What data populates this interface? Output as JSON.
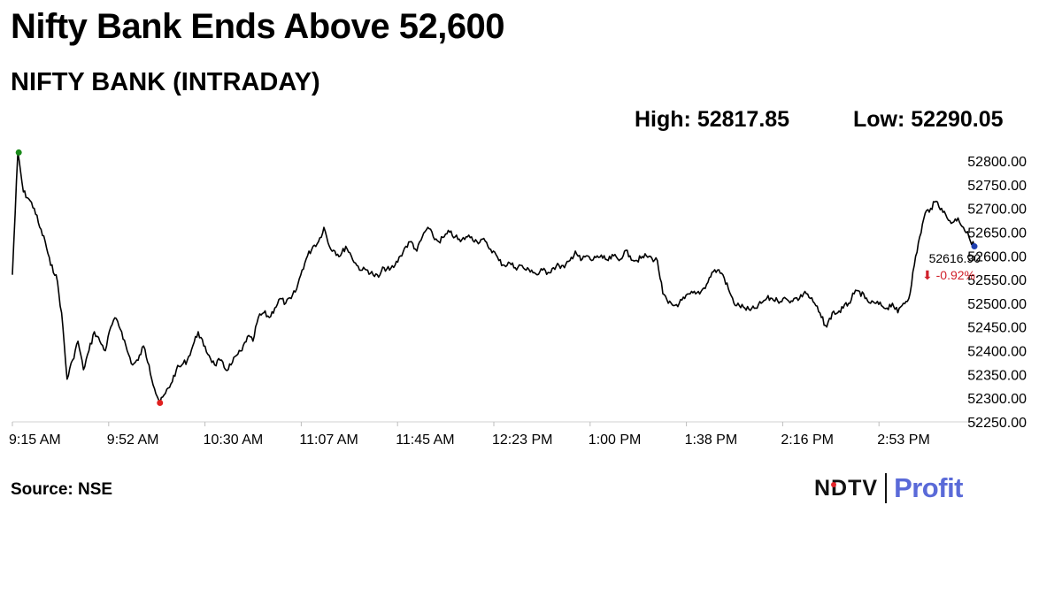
{
  "header": {
    "headline": "Nifty Bank Ends Above 52,600",
    "subtitle": "NIFTY BANK (INTRADAY)",
    "high": "High: 52817.85",
    "low": "Low: 52290.05"
  },
  "footer": {
    "source": "Source: NSE",
    "logo_primary": "NDTV",
    "logo_secondary": "Profit"
  },
  "colors": {
    "line": "#000000",
    "high_marker": "#1a8a1a",
    "low_marker": "#e0201f",
    "close_marker": "#1f3fb0",
    "change_text": "#d0202a",
    "logo_accent": "#5a6ad8"
  },
  "chart_data": {
    "type": "line",
    "title": "NIFTY BANK (INTRADAY)",
    "xlabel": "",
    "ylabel": "",
    "ylim": [
      52250,
      52800
    ],
    "yticks": [
      "52800.00",
      "52750.00",
      "52700.00",
      "52650.00",
      "52600.00",
      "52550.00",
      "52500.00",
      "52450.00",
      "52400.00",
      "52350.00",
      "52300.00",
      "52250.00"
    ],
    "xticks": [
      "9:15 AM",
      "9:52 AM",
      "10:30 AM",
      "11:07 AM",
      "11:45 AM",
      "12:23 PM",
      "1:00 PM",
      "1:38 PM",
      "2:16 PM",
      "2:53 PM"
    ],
    "grid": false,
    "last_value": "52616.90",
    "change": "-0.92%",
    "series": [
      {
        "values": [
          52560,
          52817.85,
          52735,
          52720,
          52700,
          52660,
          52630,
          52580,
          52560,
          52480,
          52340,
          52380,
          52420,
          52360,
          52400,
          52440,
          52420,
          52400,
          52450,
          52468,
          52440,
          52400,
          52370,
          52380,
          52410,
          52370,
          52320,
          52290.05,
          52310,
          52330,
          52360,
          52370,
          52380,
          52410,
          52440,
          52410,
          52390,
          52370,
          52380,
          52360,
          52370,
          52390,
          52400,
          52430,
          52420,
          52470,
          52480,
          52470,
          52490,
          52510,
          52500,
          52510,
          52530,
          52570,
          52600,
          52620,
          52630,
          52660,
          52620,
          52610,
          52600,
          52620,
          52600,
          52580,
          52570,
          52570,
          52560,
          52555,
          52575,
          52570,
          52580,
          52600,
          52620,
          52630,
          52610,
          52640,
          52660,
          52640,
          52630,
          52640,
          52650,
          52640,
          52630,
          52640,
          52640,
          52630,
          52635,
          52620,
          52610,
          52590,
          52580,
          52585,
          52575,
          52580,
          52570,
          52570,
          52560,
          52570,
          52565,
          52575,
          52580,
          52575,
          52590,
          52610,
          52590,
          52600,
          52590,
          52600,
          52595,
          52590,
          52600,
          52590,
          52610,
          52600,
          52590,
          52595,
          52600,
          52595,
          52590,
          52520,
          52500,
          52495,
          52500,
          52510,
          52520,
          52520,
          52525,
          52540,
          52565,
          52570,
          52560,
          52530,
          52500,
          52495,
          52490,
          52485,
          52490,
          52500,
          52510,
          52510,
          52505,
          52510,
          52505,
          52510,
          52510,
          52525,
          52510,
          52495,
          52470,
          52450,
          52480,
          52480,
          52490,
          52500,
          52520,
          52525,
          52510,
          52500,
          52500,
          52495,
          52490,
          52500,
          52480,
          52500,
          52510,
          52580,
          52640,
          52690,
          52700,
          52715,
          52700,
          52680,
          52670,
          52680,
          52660,
          52640,
          52620
        ]
      }
    ]
  }
}
